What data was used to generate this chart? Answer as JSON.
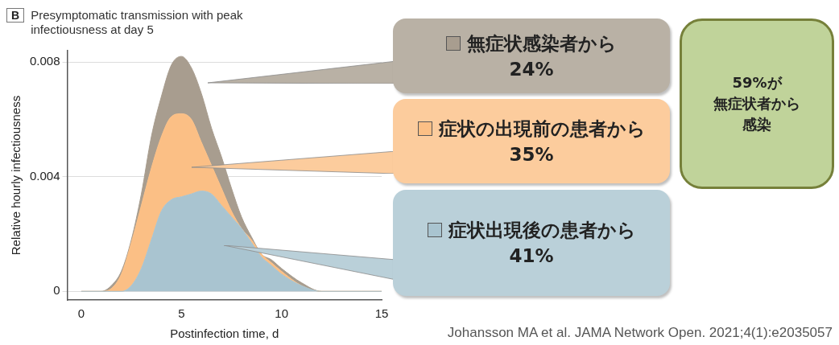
{
  "chart_data": {
    "type": "area",
    "stacked": true,
    "title": "Presymptomatic transmission with peak infectiousness at day 5",
    "xlabel": "Postinfection time, d",
    "ylabel": "Relative hourly infectiousness",
    "x": [
      0,
      1,
      1.5,
      2,
      2.5,
      3,
      3.5,
      4,
      4.5,
      5,
      5.5,
      6,
      6.5,
      7,
      7.5,
      8,
      8.5,
      9,
      9.5,
      10,
      11,
      12,
      13,
      14,
      15
    ],
    "series": [
      {
        "name": "症状出現後の患者から",
        "color": "#a9c4d0",
        "values": [
          0,
          0,
          0,
          0,
          0.0002,
          0.0008,
          0.0018,
          0.0028,
          0.0032,
          0.0033,
          0.0034,
          0.0035,
          0.0034,
          0.003,
          0.0026,
          0.0022,
          0.0017,
          0.0012,
          0.0009,
          0.0006,
          0.0002,
          0,
          0,
          0,
          0
        ]
      },
      {
        "name": "症状の出現前の患者から",
        "color": "#fbbf85",
        "values": [
          0,
          0,
          0.0001,
          0.0006,
          0.0015,
          0.0022,
          0.0025,
          0.0026,
          0.0029,
          0.0029,
          0.0026,
          0.0017,
          0.001,
          0.0006,
          0.0002,
          0,
          0.0001,
          0.0001,
          0.0001,
          0.0001,
          0,
          0,
          0,
          0,
          0
        ]
      },
      {
        "name": "無症状感染者から",
        "color": "#a89d8f",
        "values": [
          0,
          0,
          0.0001,
          0.0001,
          0.0001,
          0.0004,
          0.0011,
          0.0014,
          0.0018,
          0.002,
          0.0018,
          0.0017,
          0.0013,
          0.0011,
          0.0008,
          0.0004,
          0.0001,
          0,
          0.0001,
          0.0001,
          0.0001,
          0,
          0,
          0,
          0
        ]
      }
    ],
    "xlim": [
      -0.7,
      15
    ],
    "xticks": [
      0,
      5,
      10,
      15
    ],
    "ylim": [
      -0.0003,
      0.0084
    ],
    "yticks": [
      0,
      0.004,
      0.008
    ],
    "grid": "y",
    "legend": "right",
    "annotations": [
      "41%",
      "35%",
      "24%",
      "59%が",
      "無症状者から",
      "感染",
      "Johansson MA et al. JAMA Network Open. 2021;4(1):e2035057",
      "B"
    ]
  }
}
